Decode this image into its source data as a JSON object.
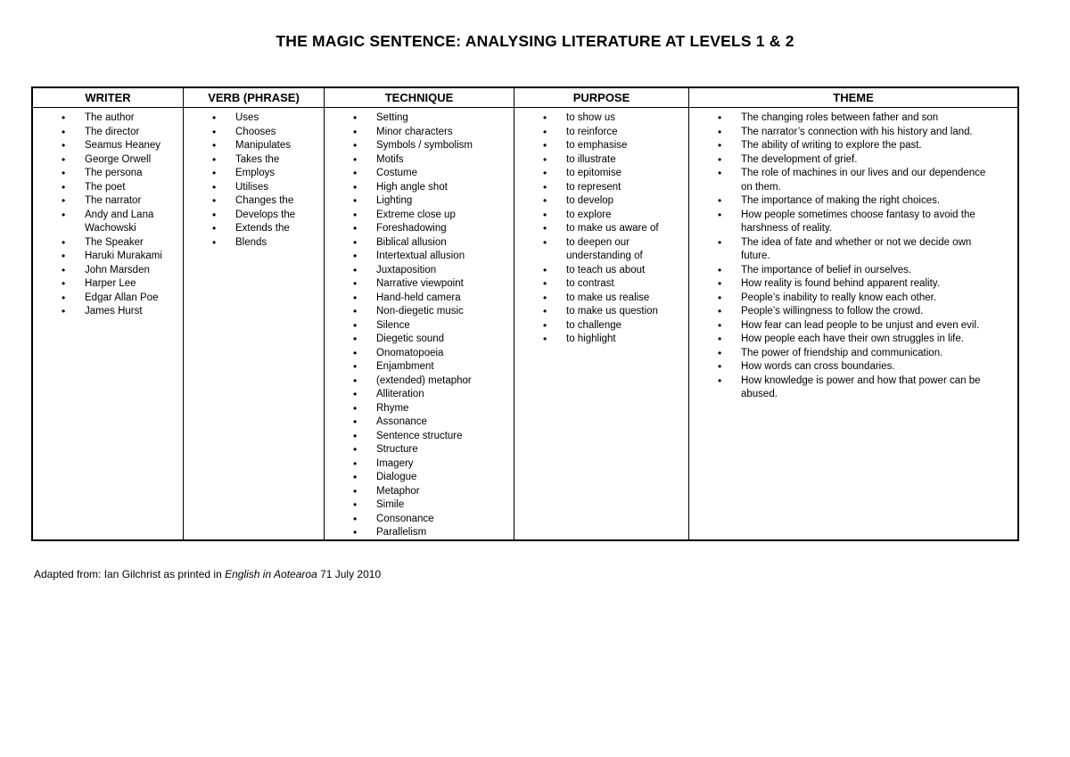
{
  "page": {
    "title": "THE MAGIC SENTENCE: ANALYSING LITERATURE AT LEVELS 1 & 2"
  },
  "footer": {
    "prefix": "Adapted from: Ian Gilchrist as printed in ",
    "italic": "English in Aotearoa",
    "suffix": " 71 July 2010"
  },
  "table": {
    "columns": [
      {
        "header": "WRITER",
        "items": [
          "The author",
          "The director",
          "Seamus Heaney",
          "George Orwell",
          "The persona",
          "The poet",
          "The narrator",
          "Andy and Lana Wachowski",
          "The Speaker",
          "Haruki Murakami",
          "John Marsden",
          "Harper Lee",
          "Edgar Allan Poe",
          "James Hurst"
        ]
      },
      {
        "header": "VERB (PHRASE)",
        "items": [
          "Uses",
          "Chooses",
          "Manipulates",
          "Takes the",
          "Employs",
          "Utilises",
          "Changes the",
          "Develops the",
          "Extends the",
          "Blends"
        ]
      },
      {
        "header": "TECHNIQUE",
        "items": [
          "Setting",
          "Minor characters",
          "Symbols / symbolism",
          "Motifs",
          "Costume",
          "High angle shot",
          "Lighting",
          "Extreme close up",
          "Foreshadowing",
          "Biblical allusion",
          "Intertextual allusion",
          "Juxtaposition",
          "Narrative viewpoint",
          "Hand-held camera",
          "Non-diegetic music",
          "Silence",
          "Diegetic sound",
          "Onomatopoeia",
          "Enjambment",
          "(extended) metaphor",
          "Alliteration",
          "Rhyme",
          "Assonance",
          "Sentence structure",
          "Structure",
          "Imagery",
          "Dialogue",
          "Metaphor",
          "Simile",
          "Consonance",
          "Parallelism"
        ]
      },
      {
        "header": "PURPOSE",
        "items": [
          "to show us",
          "to reinforce",
          "to emphasise",
          "to illustrate",
          "to epitomise",
          "to represent",
          "to develop",
          "to explore",
          "to make us aware of",
          "to deepen our understanding of",
          "to teach us about",
          "to contrast",
          "to make us realise",
          "to make us question",
          "to challenge",
          "to highlight"
        ]
      },
      {
        "header": "THEME",
        "items": [
          "The changing roles between father and son",
          "The narrator’s connection with his history and land.",
          "The ability of writing to explore the past.",
          "The development of grief.",
          "The role of machines in our lives and our dependence on them.",
          "The importance of making the right choices.",
          "How people sometimes choose fantasy to avoid the harshness of reality.",
          "The idea of fate and whether or not we decide own future.",
          "The importance of belief in ourselves.",
          "How reality is found behind apparent reality.",
          "People’s inability to really know each other.",
          "People’s willingness to follow the crowd.",
          "How fear can lead people to be unjust and even evil.",
          "How people each have their own struggles in life.",
          "The power of friendship and communication.",
          "How words can cross boundaries.",
          "How knowledge is power and how that power can be abused."
        ]
      }
    ]
  }
}
